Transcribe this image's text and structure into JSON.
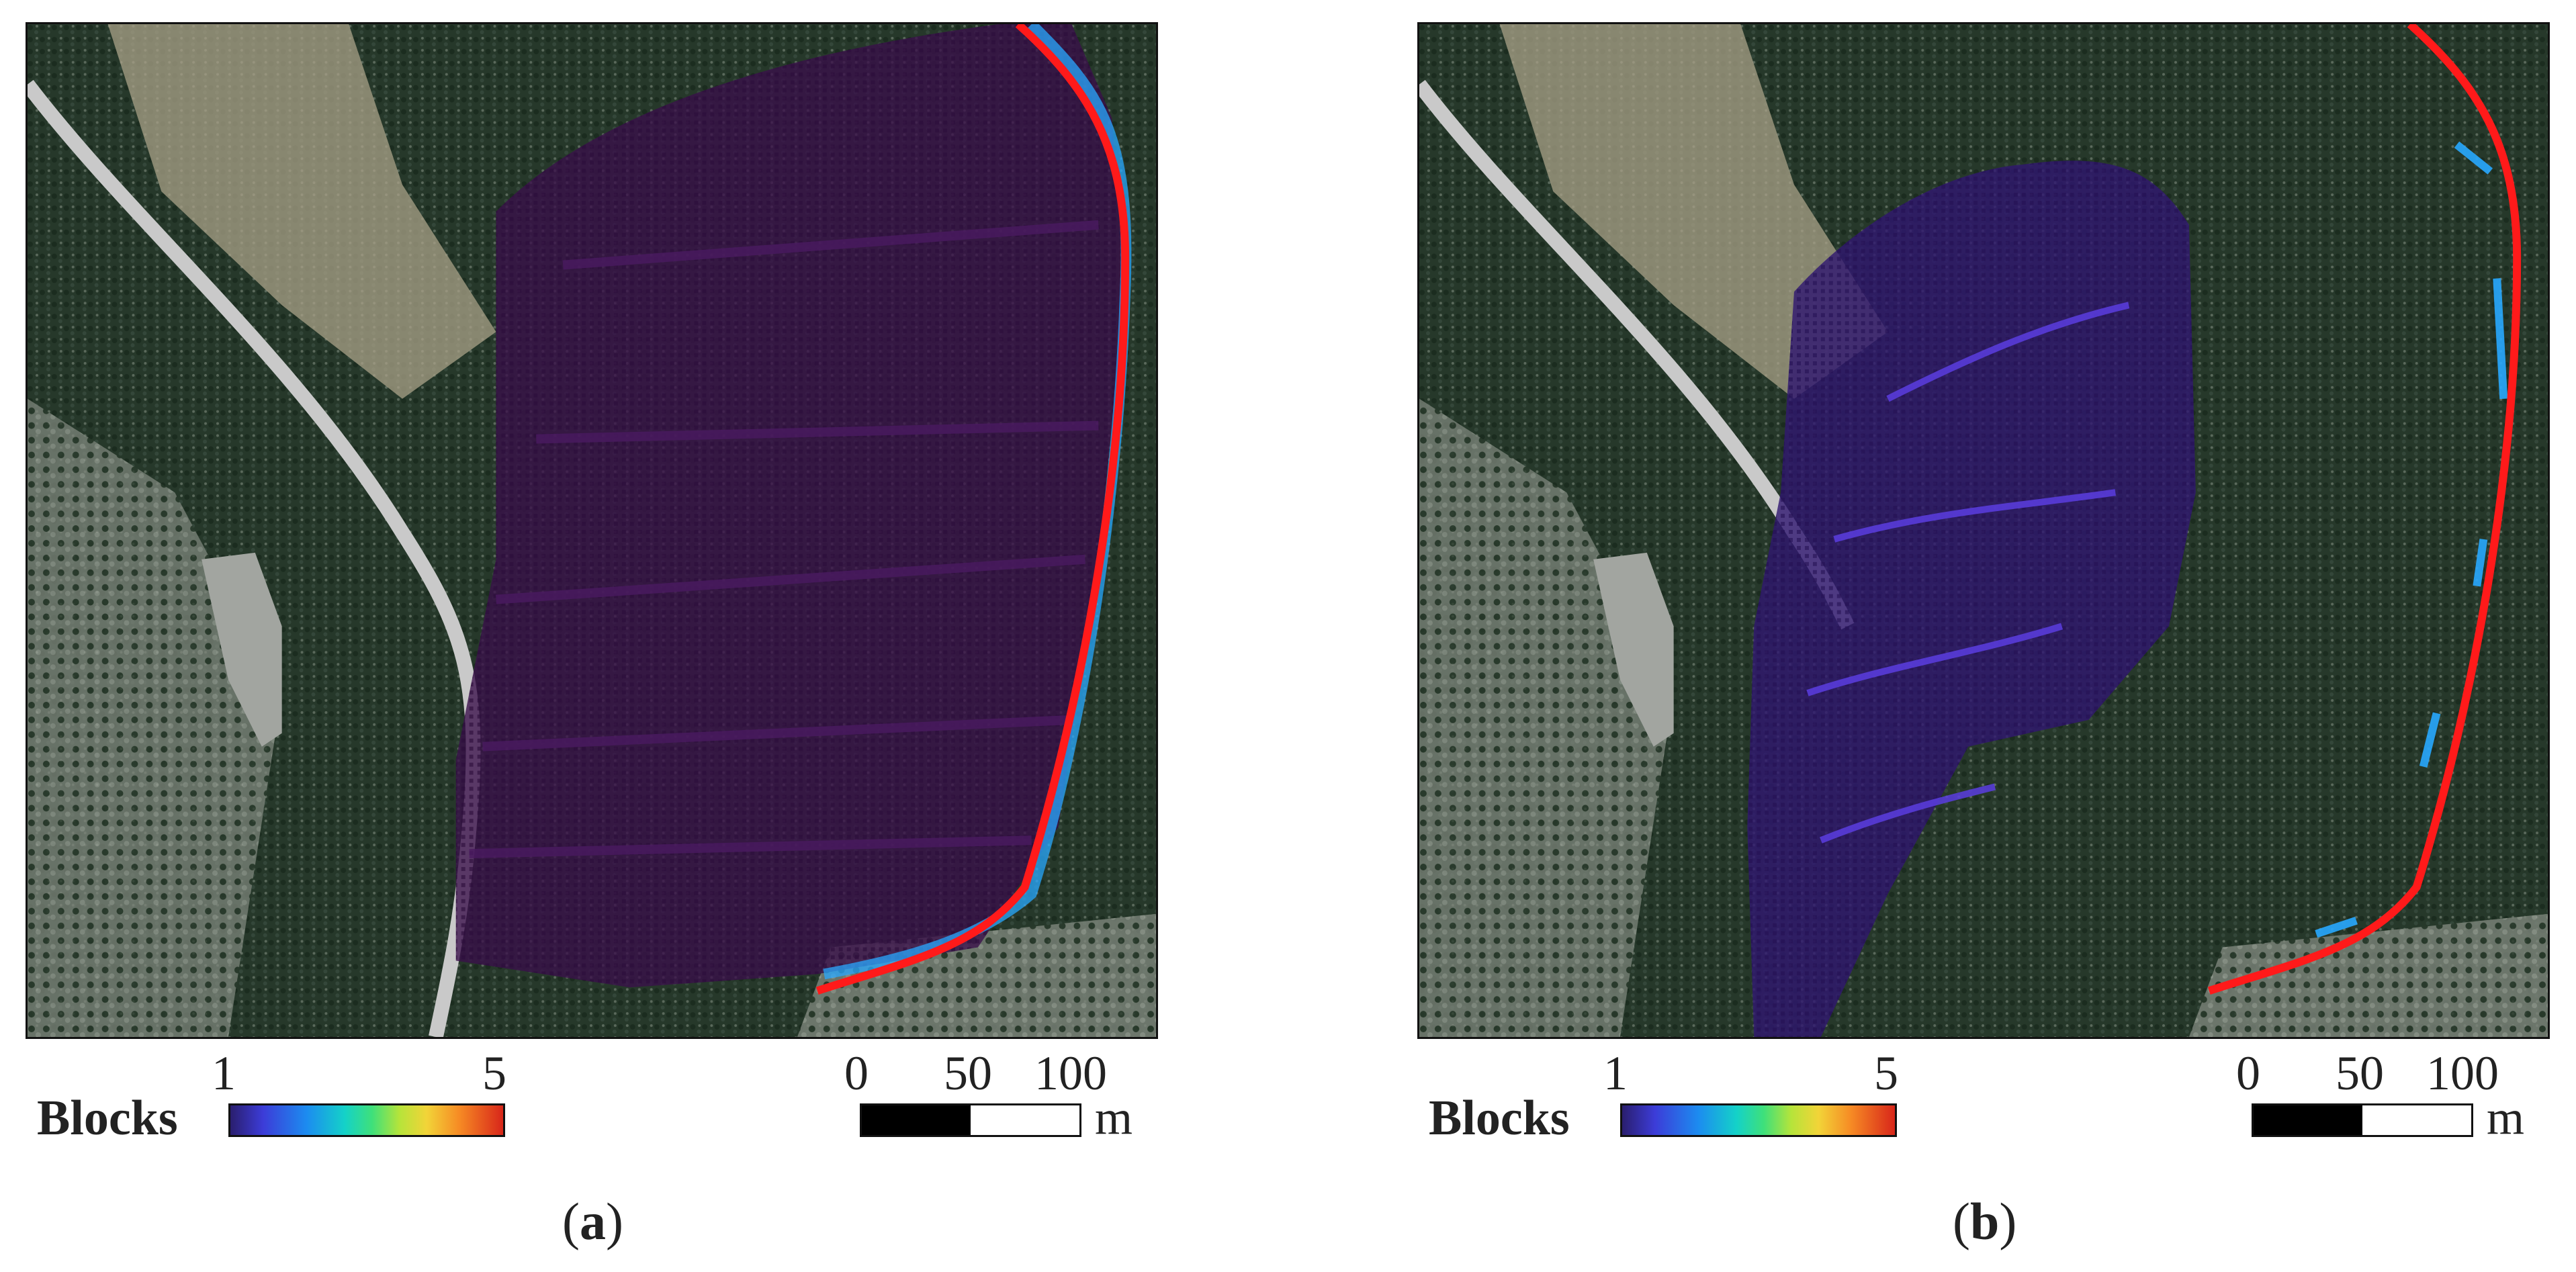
{
  "panels": [
    {
      "id": "a",
      "caption_open": "(",
      "caption_letter": "a",
      "caption_close": ")",
      "legend_title": "Blocks",
      "colorbar_min": "1",
      "colorbar_max": "5",
      "scale_ticks": [
        "0",
        "50",
        "100"
      ],
      "scale_unit": "m"
    },
    {
      "id": "b",
      "caption_open": "(",
      "caption_letter": "b",
      "caption_close": ")",
      "legend_title": "Blocks",
      "colorbar_min": "1",
      "colorbar_max": "5",
      "scale_ticks": [
        "0",
        "50",
        "100"
      ],
      "scale_unit": "m"
    }
  ],
  "colors": {
    "release_line": "#ff1a1a",
    "deposit_overlay": "#3a0f4a",
    "high_density": "#28a8ff",
    "road": "#c9c9c9",
    "vegetation": "#1f3a22",
    "bare_ground": "#8a8f82"
  },
  "colormap": [
    "#2a1e6e",
    "#3c3cd8",
    "#1c8cf0",
    "#14d2c8",
    "#3fe07a",
    "#b6e43a",
    "#f2d438",
    "#f68a24",
    "#d8261a"
  ]
}
